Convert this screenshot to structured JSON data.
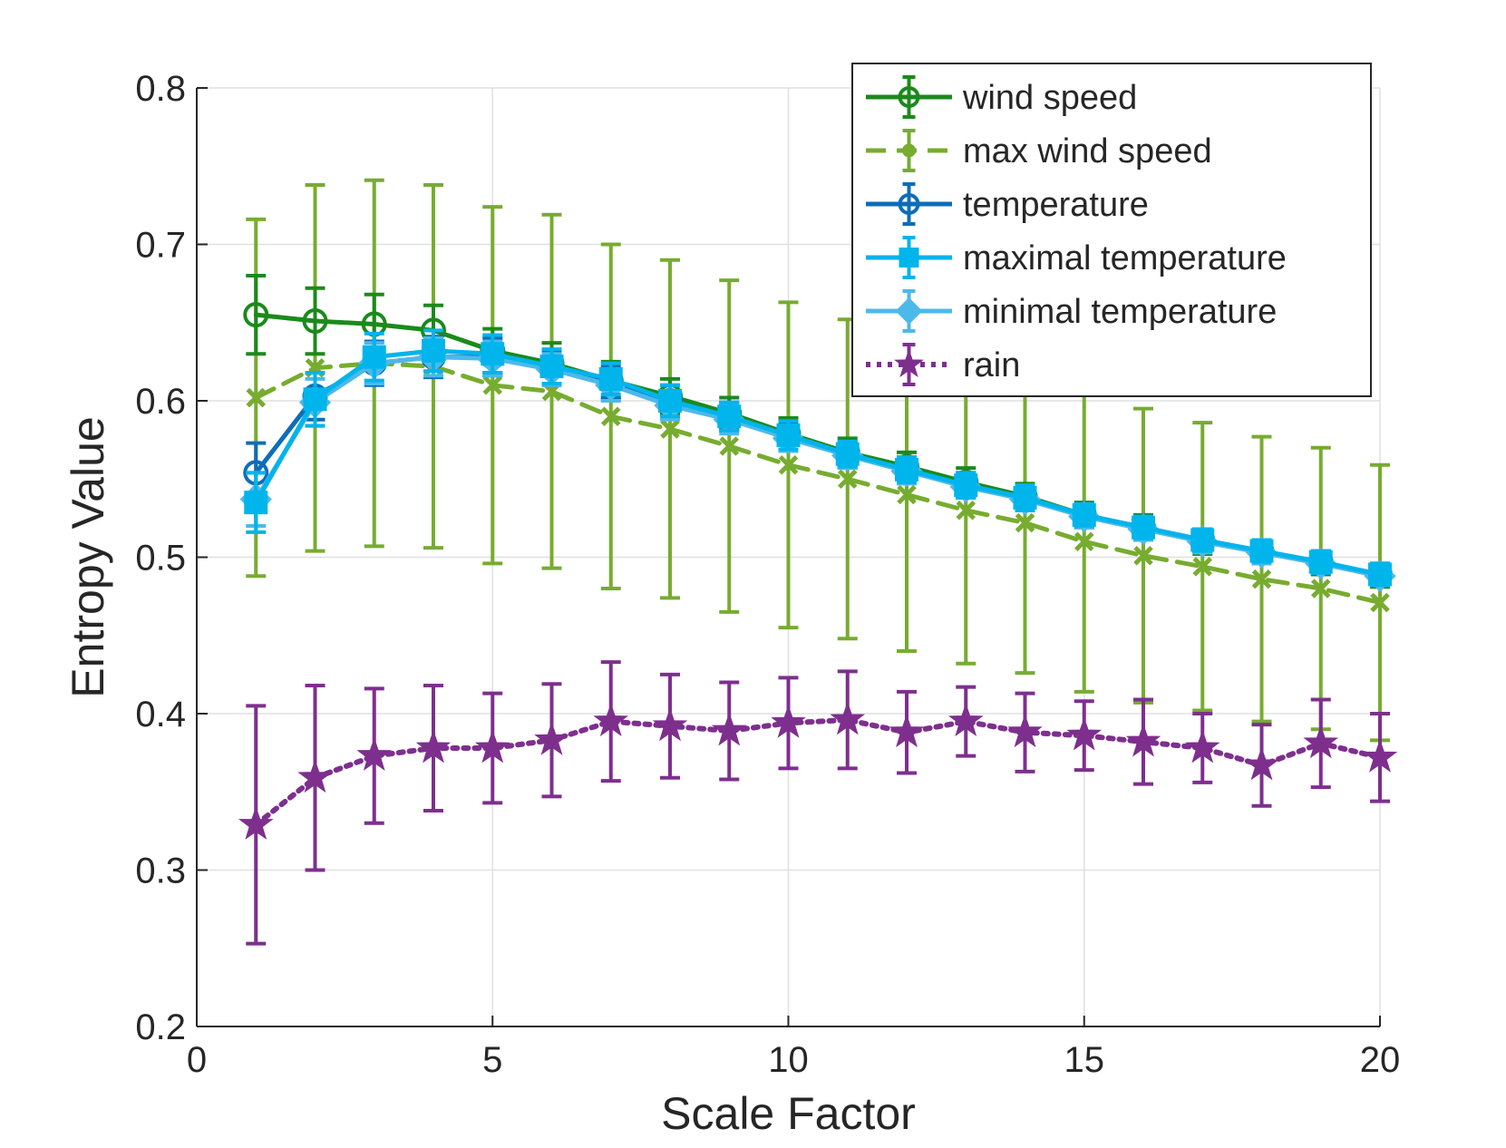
{
  "chart_data": {
    "type": "line",
    "title": "",
    "xlabel": "Scale Factor",
    "ylabel": "Entropy Value",
    "xlim": [
      0,
      20
    ],
    "ylim": [
      0.2,
      0.8
    ],
    "xticks": [
      0,
      5,
      10,
      15,
      20
    ],
    "yticks": [
      0.2,
      0.3,
      0.4,
      0.5,
      0.6,
      0.7,
      0.8
    ],
    "xtick_labels": [
      "0",
      "5",
      "10",
      "15",
      "20"
    ],
    "ytick_labels": [
      "0.2",
      "0.3",
      "0.4",
      "0.5",
      "0.6",
      "0.7",
      "0.8"
    ],
    "grid": true,
    "legend_position": "top-right",
    "x": [
      1,
      2,
      3,
      4,
      5,
      6,
      7,
      8,
      9,
      10,
      11,
      12,
      13,
      14,
      15,
      16,
      17,
      18,
      19,
      20
    ],
    "series": [
      {
        "name": "wind speed",
        "color": "#1b8a1b",
        "dash": "solid",
        "marker": "circle",
        "values": [
          0.655,
          0.651,
          0.649,
          0.645,
          0.632,
          0.624,
          0.613,
          0.603,
          0.592,
          0.579,
          0.567,
          0.558,
          0.548,
          0.539,
          0.527,
          0.519,
          0.51,
          0.503,
          0.496,
          0.488
        ],
        "errors": [
          0.025,
          0.021,
          0.019,
          0.016,
          0.014,
          0.013,
          0.012,
          0.011,
          0.01,
          0.01,
          0.009,
          0.009,
          0.009,
          0.008,
          0.008,
          0.008,
          0.008,
          0.007,
          0.007,
          0.007
        ]
      },
      {
        "name": "max wind speed",
        "color": "#77ac30",
        "dash": "dashed",
        "marker": "x",
        "values": [
          0.602,
          0.621,
          0.624,
          0.622,
          0.61,
          0.606,
          0.59,
          0.582,
          0.571,
          0.559,
          0.55,
          0.54,
          0.53,
          0.522,
          0.51,
          0.501,
          0.494,
          0.486,
          0.48,
          0.471
        ],
        "errors": [
          0.114,
          0.117,
          0.117,
          0.116,
          0.114,
          0.113,
          0.11,
          0.108,
          0.106,
          0.104,
          0.102,
          0.1,
          0.098,
          0.096,
          0.096,
          0.094,
          0.092,
          0.091,
          0.09,
          0.088
        ]
      },
      {
        "name": "temperature",
        "color": "#0e6db8",
        "dash": "solid",
        "marker": "circle",
        "values": [
          0.554,
          0.603,
          0.624,
          0.628,
          0.628,
          0.621,
          0.612,
          0.6,
          0.59,
          0.577,
          0.566,
          0.556,
          0.546,
          0.538,
          0.527,
          0.519,
          0.511,
          0.504,
          0.497,
          0.489
        ],
        "errors": [
          0.019,
          0.015,
          0.014,
          0.013,
          0.012,
          0.011,
          0.01,
          0.01,
          0.009,
          0.009,
          0.008,
          0.008,
          0.008,
          0.008,
          0.007,
          0.007,
          0.007,
          0.007,
          0.007,
          0.007
        ]
      },
      {
        "name": "maximal temperature",
        "color": "#00b4ec",
        "dash": "solid",
        "marker": "square",
        "values": [
          0.535,
          0.601,
          0.628,
          0.632,
          0.63,
          0.622,
          0.614,
          0.6,
          0.59,
          0.578,
          0.566,
          0.556,
          0.546,
          0.538,
          0.527,
          0.519,
          0.511,
          0.504,
          0.497,
          0.489
        ],
        "errors": [
          0.019,
          0.017,
          0.015,
          0.013,
          0.012,
          0.011,
          0.01,
          0.01,
          0.009,
          0.009,
          0.008,
          0.008,
          0.008,
          0.008,
          0.007,
          0.007,
          0.007,
          0.007,
          0.007,
          0.007
        ]
      },
      {
        "name": "minimal temperature",
        "color": "#4cb9ea",
        "dash": "solid",
        "marker": "diamond",
        "values": [
          0.537,
          0.599,
          0.624,
          0.628,
          0.627,
          0.62,
          0.61,
          0.597,
          0.588,
          0.576,
          0.565,
          0.555,
          0.545,
          0.537,
          0.526,
          0.518,
          0.51,
          0.503,
          0.496,
          0.488
        ],
        "errors": [
          0.017,
          0.015,
          0.013,
          0.012,
          0.011,
          0.01,
          0.01,
          0.009,
          0.009,
          0.008,
          0.008,
          0.008,
          0.007,
          0.007,
          0.007,
          0.007,
          0.007,
          0.007,
          0.006,
          0.006
        ]
      },
      {
        "name": "rain",
        "color": "#7e2f8e",
        "dash": "dotted",
        "marker": "star",
        "values": [
          0.329,
          0.359,
          0.373,
          0.378,
          0.378,
          0.383,
          0.395,
          0.392,
          0.389,
          0.394,
          0.396,
          0.388,
          0.395,
          0.388,
          0.386,
          0.382,
          0.378,
          0.367,
          0.381,
          0.372
        ],
        "errors": [
          0.076,
          0.059,
          0.043,
          0.04,
          0.035,
          0.036,
          0.038,
          0.033,
          0.031,
          0.029,
          0.031,
          0.026,
          0.022,
          0.025,
          0.022,
          0.027,
          0.022,
          0.026,
          0.028,
          0.028
        ]
      }
    ]
  }
}
